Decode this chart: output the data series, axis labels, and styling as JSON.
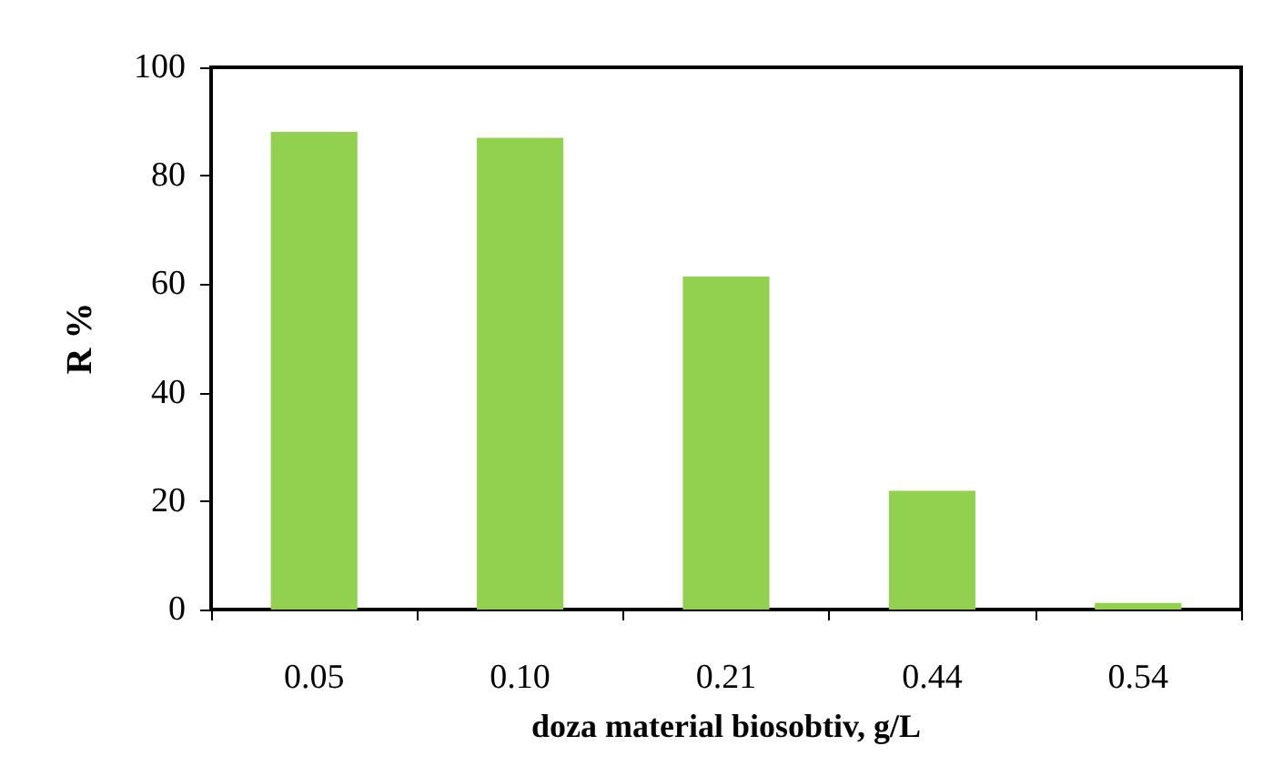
{
  "chart_data": {
    "type": "bar",
    "categories": [
      "0.05",
      "0.10",
      "0.21",
      "0.44",
      "0.54"
    ],
    "values": [
      88.1,
      87.0,
      61.4,
      21.9,
      1.2
    ],
    "color": "#92d050",
    "xlabel": "doza material biosobtiv, g/L",
    "ylabel": "R %",
    "ylim": [
      0,
      100
    ],
    "yticks": [
      0,
      20,
      40,
      60,
      80,
      100
    ],
    "grid": false
  }
}
